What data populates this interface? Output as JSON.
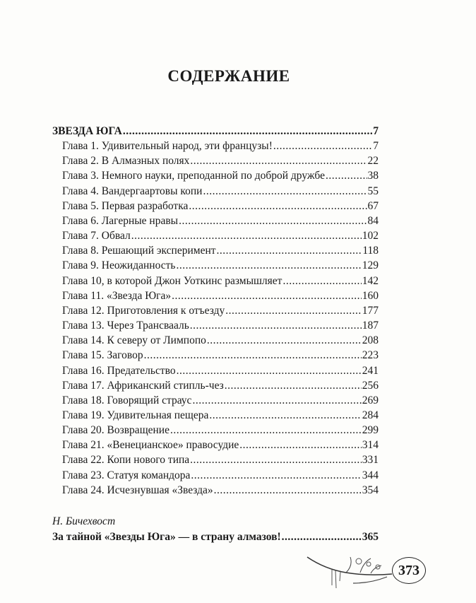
{
  "title": "СОДЕРЖАНИЕ",
  "section": {
    "title": "ЗВЕЗДА ЮГА",
    "page": "7"
  },
  "chapters": [
    {
      "title": "Глава 1. Удивительный народ, эти французы!",
      "page": "7"
    },
    {
      "title": "Глава 2. В Алмазных полях",
      "page": "22"
    },
    {
      "title": "Глава 3. Немного науки, преподанной по доброй дружбе",
      "page": "38"
    },
    {
      "title": "Глава 4. Вандергаартовы копи",
      "page": "55"
    },
    {
      "title": "Глава 5. Первая разработка",
      "page": "67"
    },
    {
      "title": "Глава 6. Лагерные нравы",
      "page": "84"
    },
    {
      "title": "Глава 7. Обвал",
      "page": "102"
    },
    {
      "title": "Глава 8. Решающий эксперимент",
      "page": "118"
    },
    {
      "title": "Глава 9. Неожиданность",
      "page": "129"
    },
    {
      "title": "Глава 10, в которой Джон Уоткинс размышляет",
      "page": "142"
    },
    {
      "title": "Глава 11. «Звезда Юга»",
      "page": "160"
    },
    {
      "title": "Глава 12. Приготовления к отъезду",
      "page": "177"
    },
    {
      "title": "Глава 13. Через Трансвааль",
      "page": "187"
    },
    {
      "title": "Глава 14. К северу от Лимпопо",
      "page": "208"
    },
    {
      "title": "Глава 15. Заговор",
      "page": "223"
    },
    {
      "title": "Глава 16. Предательство",
      "page": "241"
    },
    {
      "title": "Глава 17. Африканский стипль-чез",
      "page": "256"
    },
    {
      "title": "Глава 18. Говорящий страус",
      "page": "269"
    },
    {
      "title": "Глава 19. Удивительная пещера",
      "page": "284"
    },
    {
      "title": "Глава 20. Возвращение",
      "page": "299"
    },
    {
      "title": "Глава 21. «Венецианское» правосудие",
      "page": "314"
    },
    {
      "title": "Глава 22. Копи нового типа",
      "page": "331"
    },
    {
      "title": "Глава 23. Статуя командора",
      "page": "344"
    },
    {
      "title": "Глава 24. Исчезнувшая «Звезда»",
      "page": "354"
    }
  ],
  "afterword": {
    "author": "Н. Бичехвост",
    "title": "За тайной «Звезды Юга» — в страну алмазов!",
    "page": "365"
  },
  "page_number": "373"
}
